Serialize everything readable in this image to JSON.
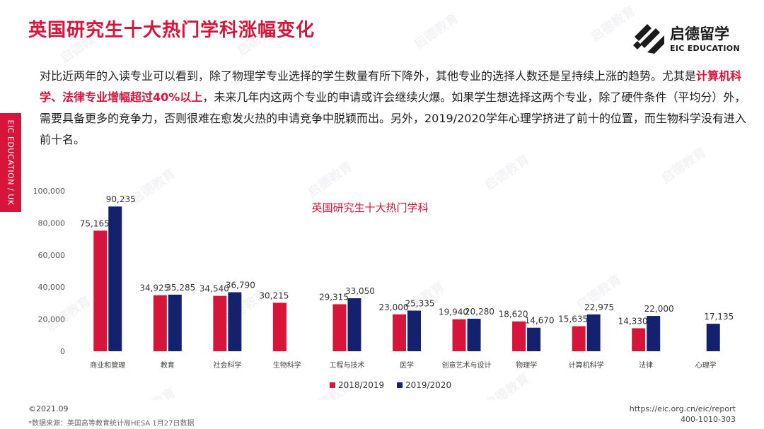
{
  "header": {
    "title": "英国研究生十大热门学科涨幅变化",
    "side_tab": "EIC EDUCATION / UK",
    "logo_cn": "启德留学",
    "logo_en": "EIC EDUCATION"
  },
  "paragraph": {
    "part1": "对比近两年的入读专业可以看到，除了物理学专业选择的学生数量有所下降外，其他专业的选择人数还是呈持续上涨的趋势。尤其是",
    "highlight": "计算机科学、法律专业增幅超过40%以上",
    "part2": "，未来几年内这两个专业的申请或许会继续火爆。如果学生想选择这两个专业，除了硬件条件（平均分）外，需要具备更多的竞争力，否则很难在愈发火热的申请竞争中脱颖而出。另外，2019/2020学年心理学挤进了前十的位置，而生物科学没有进入前十名。"
  },
  "chart_data": {
    "type": "bar",
    "title": "英国研究生十大热门学科",
    "categories": [
      "商业和管理",
      "教育",
      "社会科学",
      "生物科学",
      "工程与技术",
      "医学",
      "创意艺术与设计",
      "物理学",
      "计算机科学",
      "法律",
      "心理学"
    ],
    "series": [
      {
        "name": "2018/2019",
        "color": "#d7153a",
        "values": [
          75165,
          34925,
          34540,
          30215,
          29315,
          23000,
          19940,
          18620,
          15635,
          14330,
          null
        ]
      },
      {
        "name": "2019/2020",
        "color": "#14226e",
        "values": [
          90235,
          35285,
          36790,
          null,
          33050,
          25335,
          20280,
          14670,
          22975,
          22000,
          17135
        ]
      }
    ],
    "value_labels": [
      [
        "75,165",
        "34,925",
        "34,540",
        "30,215",
        "29,315",
        "23,000",
        "19,940",
        "18,620",
        "15,635",
        "14,330",
        ""
      ],
      [
        "90,235",
        "35,285",
        "36,790",
        "",
        "33,050",
        "25,335",
        "20,280",
        "14,670",
        "22,975",
        "22,000",
        "17,135"
      ]
    ],
    "ylim": [
      0,
      100000
    ],
    "yticks": [
      0,
      20000,
      40000,
      60000,
      80000,
      100000
    ],
    "ytick_labels": [
      "0",
      "20,000",
      "40,000",
      "60,000",
      "80,000",
      "100,000"
    ],
    "legend_position": "bottom",
    "grid": false
  },
  "footer": {
    "date": "©2021.09",
    "source": "*数据来源：英国高等教育统计局HESA 1月27日数据",
    "url": "https://eic.org.cn/eic/report",
    "phone": "400-1010-303"
  },
  "colors": {
    "accent": "#d7153a",
    "navy": "#14226e"
  },
  "watermark": {
    "cn": "启德教育",
    "en": "EIC EDUCATION"
  }
}
